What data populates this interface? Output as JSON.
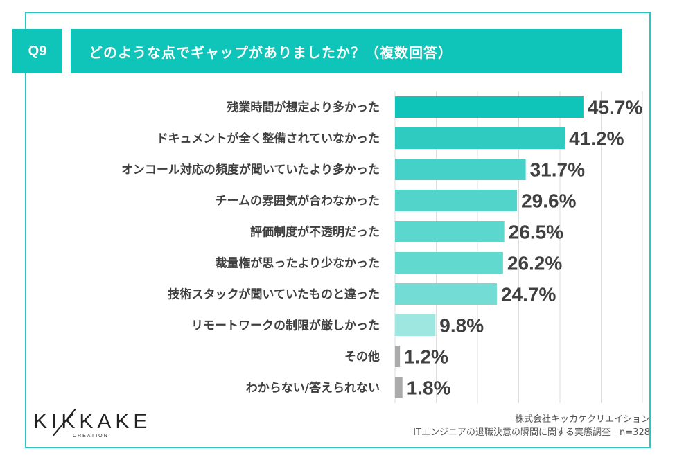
{
  "header": {
    "question_number": "Q9",
    "title": "どのような点でギャップがありましたか？（複数回答）"
  },
  "colors": {
    "accent": "#0fc4b8",
    "frame": "#2cc5bf",
    "other": "#aaaaaa"
  },
  "chart_data": {
    "type": "bar",
    "orientation": "horizontal",
    "title": "どのような点でギャップがありましたか？（複数回答）",
    "xlabel": "",
    "ylabel": "",
    "xlim": [
      0,
      60
    ],
    "grid": true,
    "unit": "%",
    "categories": [
      "残業時間が想定より多かった",
      "ドキュメントが全く整備されていなかった",
      "オンコール対応の頻度が聞いていたより多かった",
      "チームの雰囲気が合わなかった",
      "評価制度が不透明だった",
      "裁量権が思ったより少なかった",
      "技術スタックが聞いていたものと違った",
      "リモートワークの制限が厳しかった",
      "その他",
      "わからない/答えられない"
    ],
    "values": [
      45.7,
      41.2,
      31.7,
      29.6,
      26.5,
      26.2,
      24.7,
      9.8,
      1.2,
      1.8
    ],
    "value_labels": [
      "45.7%",
      "41.2%",
      "31.7%",
      "29.6%",
      "26.5%",
      "26.2%",
      "24.7%",
      "9.8%",
      "1.2%",
      "1.8%"
    ],
    "bar_colors": [
      "#0fc4b8",
      "#2fcbc0",
      "#45d1c7",
      "#52d4ca",
      "#5bd7cd",
      "#62d9cf",
      "#73ddd5",
      "#9ee7e1",
      "#aaaaaa",
      "#aaaaaa"
    ]
  },
  "footer": {
    "logo_text": "KIKKAKE",
    "logo_sub": "CREATION",
    "source_line1": "株式会社キッカケクリエイション",
    "source_line2": "ITエンジニアの退職決意の瞬間に関する実態調査｜n=328"
  }
}
